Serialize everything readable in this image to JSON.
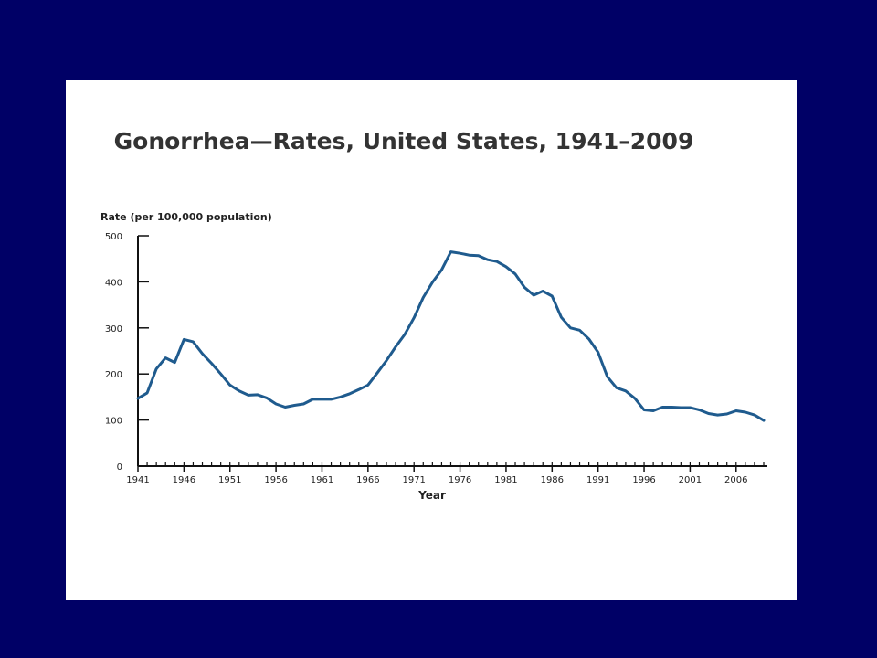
{
  "slide": {
    "background": "#000066",
    "panel_background": "#ffffff"
  },
  "chart_data": {
    "type": "line",
    "title": "Gonorrhea—Rates, United States, 1941–2009",
    "ylabel": "Rate (per 100,000 population)",
    "xlabel": "Year",
    "ylim": [
      0,
      500
    ],
    "xlim": [
      1941,
      2009
    ],
    "y_ticks": [
      0,
      100,
      200,
      300,
      400,
      500
    ],
    "x_tick_labels": [
      1941,
      1946,
      1951,
      1956,
      1961,
      1966,
      1971,
      1976,
      1981,
      1986,
      1991,
      1996,
      2001,
      2006
    ],
    "grid": false,
    "legend": "none",
    "line_color": "#1f5b8e",
    "x": [
      1941,
      1942,
      1943,
      1944,
      1945,
      1946,
      1947,
      1948,
      1949,
      1950,
      1951,
      1952,
      1953,
      1954,
      1955,
      1956,
      1957,
      1958,
      1959,
      1960,
      1961,
      1962,
      1963,
      1964,
      1965,
      1966,
      1967,
      1968,
      1969,
      1970,
      1971,
      1972,
      1973,
      1974,
      1975,
      1976,
      1977,
      1978,
      1979,
      1980,
      1981,
      1982,
      1983,
      1984,
      1985,
      1986,
      1987,
      1988,
      1989,
      1990,
      1991,
      1992,
      1993,
      1994,
      1995,
      1996,
      1997,
      1998,
      1999,
      2000,
      2001,
      2002,
      2003,
      2004,
      2005,
      2006,
      2007,
      2008,
      2009
    ],
    "values": [
      147,
      159,
      211,
      235,
      225,
      275,
      270,
      244,
      223,
      200,
      176,
      163,
      154,
      155,
      148,
      135,
      128,
      132,
      135,
      145,
      145,
      145,
      150,
      157,
      166,
      176,
      202,
      229,
      259,
      286,
      322,
      366,
      399,
      426,
      465,
      462,
      458,
      457,
      448,
      444,
      433,
      417,
      388,
      371,
      380,
      369,
      323,
      300,
      295,
      276,
      247,
      194,
      170,
      163,
      147,
      122,
      120,
      128,
      128,
      127,
      127,
      122,
      114,
      111,
      113,
      120,
      117,
      111,
      99
    ]
  }
}
